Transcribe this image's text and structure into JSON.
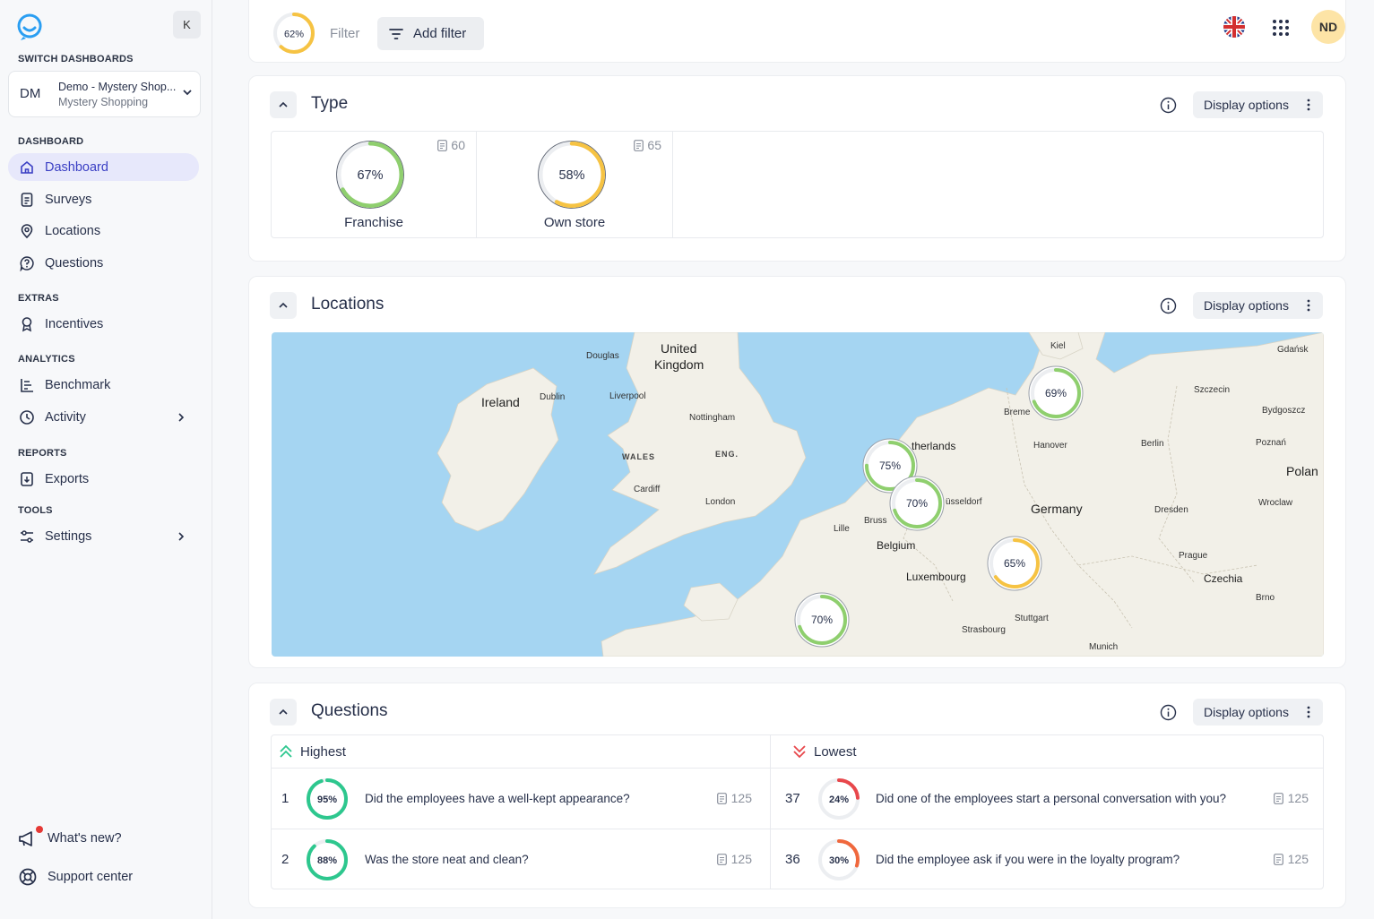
{
  "sidebar": {
    "collapse_label": "K",
    "switch_label": "SWITCH DASHBOARDS",
    "dashboard": {
      "initials": "DM",
      "name": "Demo - Mystery Shop...",
      "subtitle": "Mystery Shopping"
    },
    "sections": {
      "dashboard": "DASHBOARD",
      "extras": "EXTRAS",
      "analytics": "ANALYTICS",
      "reports": "REPORTS",
      "tools": "TOOLS"
    },
    "items": {
      "dashboard": "Dashboard",
      "surveys": "Surveys",
      "locations": "Locations",
      "questions": "Questions",
      "incentives": "Incentives",
      "benchmark": "Benchmark",
      "activity": "Activity",
      "exports": "Exports",
      "settings": "Settings"
    },
    "whats_new": "What's new?",
    "support": "Support center"
  },
  "topbar": {
    "overall_score": "62%",
    "overall_value": 0.62,
    "filter_label": "Filter",
    "add_filter": "Add filter",
    "avatar": "ND"
  },
  "type_card": {
    "title": "Type",
    "display_options": "Display options",
    "tiles": [
      {
        "label": "Franchise",
        "score": "67%",
        "value": 0.67,
        "count": "60",
        "color": "#8fcf6e"
      },
      {
        "label": "Own store",
        "score": "58%",
        "value": 0.58,
        "count": "65",
        "color": "#f6c343"
      }
    ]
  },
  "locations_card": {
    "title": "Locations",
    "display_options": "Display options",
    "pins": [
      {
        "score": "69%",
        "value": 0.69,
        "color": "#8fcf6e"
      },
      {
        "score": "75%",
        "value": 0.75,
        "color": "#8fcf6e"
      },
      {
        "score": "70%",
        "value": 0.7,
        "color": "#8fcf6e"
      },
      {
        "score": "65%",
        "value": 0.65,
        "color": "#f6c343"
      },
      {
        "score": "70%",
        "value": 0.7,
        "color": "#8fcf6e"
      }
    ],
    "map_labels": {
      "uk": "United",
      "uk2": "Kingdom",
      "ireland": "Ireland",
      "douglas": "Douglas",
      "dublin": "Dublin",
      "liverpool": "Liverpool",
      "nottingham": "Nottingham",
      "wales": "WALES",
      "eng": "ENG.",
      "cardiff": "Cardiff",
      "london": "London",
      "kiel": "Kiel",
      "gdansk": "Gdańsk",
      "szczecin": "Szczecin",
      "bremen": "Breme",
      "netherlands": "therlands",
      "hanover": "Hanover",
      "berlin": "Berlin",
      "bydgoszcz": "Bydgoszcz",
      "poznan": "Poznań",
      "poland": "Polan",
      "dusseldorf": "üsseldorf",
      "germany": "Germany",
      "dresden": "Dresden",
      "wroclaw": "Wroclaw",
      "lille": "Lille",
      "brussels": "Bruss",
      "belgium": "Belgium",
      "luxembourg": "Luxembourg",
      "prague": "Prague",
      "czechia": "Czechia",
      "brno": "Brno",
      "stuttgart": "Stuttgart",
      "strasbourg": "Strasbourg",
      "munich": "Munich"
    }
  },
  "questions_card": {
    "title": "Questions",
    "display_options": "Display options",
    "highest_label": "Highest",
    "lowest_label": "Lowest",
    "highest": [
      {
        "rank": "1",
        "score": "95%",
        "value": 0.95,
        "text": "Did the employees have a well-kept appearance?",
        "count": "125",
        "color": "#2dc78e"
      },
      {
        "rank": "2",
        "score": "88%",
        "value": 0.88,
        "text": "Was the store neat and clean?",
        "count": "125",
        "color": "#2dc78e"
      }
    ],
    "lowest": [
      {
        "rank": "37",
        "score": "24%",
        "value": 0.24,
        "text": "Did one of the employees start a personal conversation with you?",
        "count": "125",
        "color": "#e8474b"
      },
      {
        "rank": "36",
        "score": "30%",
        "value": 0.3,
        "text": "Did the employee ask if you were in the loyalty program?",
        "count": "125",
        "color": "#f0683d"
      }
    ]
  }
}
